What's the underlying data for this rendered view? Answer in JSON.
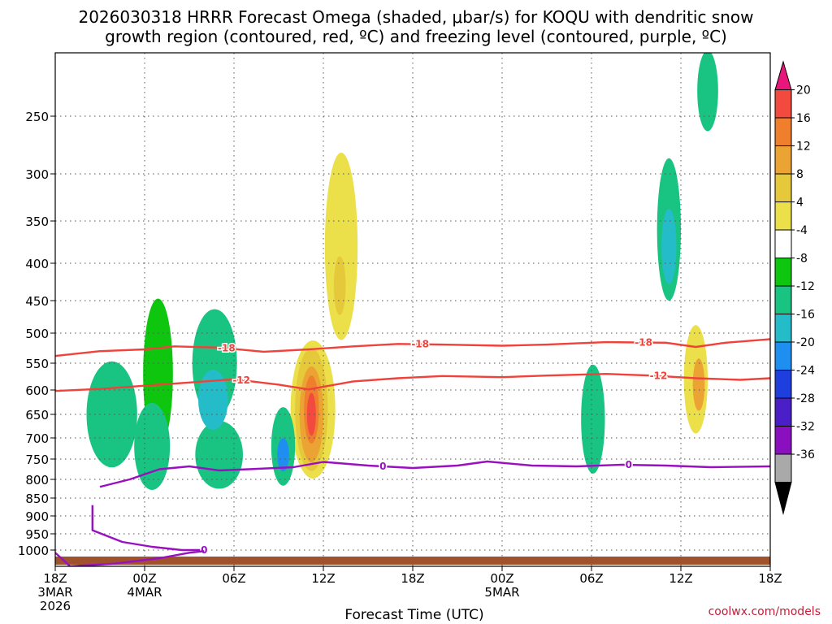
{
  "chart_data": {
    "type": "heatmap",
    "title_lines": [
      "2026030318 HRRR Forecast Omega (shaded, μbar/s) for KOQU with dendritic snow",
      "growth region (contoured, red, ºC) and freezing level (contoured, purple, ºC)"
    ],
    "xlabel": "Forecast Time (UTC)",
    "ylabel": "",
    "credit": "coolwx.com/models",
    "x_range_hours": [
      0,
      48
    ],
    "x_ticks": [
      {
        "hour": 0,
        "lines": [
          "18Z",
          "3MAR",
          "2026"
        ]
      },
      {
        "hour": 6,
        "lines": [
          "00Z",
          "4MAR"
        ]
      },
      {
        "hour": 12,
        "lines": [
          "06Z"
        ]
      },
      {
        "hour": 18,
        "lines": [
          "12Z"
        ]
      },
      {
        "hour": 24,
        "lines": [
          "18Z"
        ]
      },
      {
        "hour": 30,
        "lines": [
          "00Z",
          "5MAR"
        ]
      },
      {
        "hour": 36,
        "lines": [
          "06Z"
        ]
      },
      {
        "hour": 42,
        "lines": [
          "12Z"
        ]
      },
      {
        "hour": 48,
        "lines": [
          "18Z"
        ]
      }
    ],
    "y_axis": "pressure (hPa)",
    "y_range": [
      200,
      1030
    ],
    "y_ticks": [
      250,
      300,
      350,
      400,
      450,
      500,
      550,
      600,
      650,
      700,
      750,
      800,
      850,
      900,
      950,
      1000
    ],
    "colorbar": {
      "labels": [
        "20",
        "16",
        "12",
        "8",
        "4",
        "-4",
        "-8",
        "-12",
        "-16",
        "-20",
        "-24",
        "-28",
        "-32",
        "-36"
      ],
      "colors": [
        "#e8157a",
        "#f24a3e",
        "#f07f2d",
        "#eba334",
        "#e6c93a",
        "#ece04a",
        "#ffffff",
        "#0ec60e",
        "#19c483",
        "#25bcc9",
        "#1e8ef0",
        "#1e3fde",
        "#4a1fc8",
        "#8a0fbf",
        "#a9a9a9",
        "#000000"
      ]
    },
    "contours": [
      {
        "name": "dgz-minus-18",
        "color": "#f0413a",
        "label": "-18",
        "label_hours": [
          11.5,
          24.5,
          39.5
        ],
        "points": [
          [
            0,
            538
          ],
          [
            3,
            530
          ],
          [
            6,
            527
          ],
          [
            8,
            522
          ],
          [
            11,
            524
          ],
          [
            14,
            531
          ],
          [
            17,
            527
          ],
          [
            20,
            522
          ],
          [
            23,
            518
          ],
          [
            26,
            519
          ],
          [
            30,
            521
          ],
          [
            33,
            519
          ],
          [
            37,
            515
          ],
          [
            41,
            516
          ],
          [
            43,
            523
          ],
          [
            45,
            516
          ],
          [
            48,
            510
          ]
        ]
      },
      {
        "name": "dgz-minus-12",
        "color": "#f0413a",
        "label": "-12",
        "label_hours": [
          12.5,
          40.5
        ],
        "points": [
          [
            0,
            602
          ],
          [
            3,
            598
          ],
          [
            6,
            592
          ],
          [
            9,
            586
          ],
          [
            12,
            580
          ],
          [
            15,
            590
          ],
          [
            17,
            599
          ],
          [
            20,
            584
          ],
          [
            23,
            578
          ],
          [
            26,
            574
          ],
          [
            30,
            576
          ],
          [
            33,
            573
          ],
          [
            37,
            570
          ],
          [
            40,
            573
          ],
          [
            43,
            578
          ],
          [
            46,
            581
          ],
          [
            48,
            578
          ]
        ]
      },
      {
        "name": "freezing-level-main",
        "color": "#9a10c0",
        "label": "0",
        "label_hours": [
          22,
          38.5
        ],
        "points": [
          [
            3,
            820
          ],
          [
            5,
            800
          ],
          [
            7,
            775
          ],
          [
            9,
            768
          ],
          [
            11,
            778
          ],
          [
            13,
            775
          ],
          [
            16,
            770
          ],
          [
            18,
            757
          ],
          [
            21,
            766
          ],
          [
            24,
            772
          ],
          [
            27,
            766
          ],
          [
            29,
            756
          ],
          [
            32,
            766
          ],
          [
            35,
            768
          ],
          [
            38,
            764
          ],
          [
            41,
            766
          ],
          [
            44,
            770
          ],
          [
            48,
            768
          ]
        ]
      },
      {
        "name": "freezing-level-lower",
        "color": "#9a10c0",
        "label": "0",
        "label_hours": [
          10
        ],
        "points": [
          [
            2.5,
            870
          ],
          [
            2.5,
            940
          ],
          [
            4.5,
            975
          ],
          [
            6.5,
            990
          ],
          [
            8.5,
            1000
          ],
          [
            10,
            1000
          ]
        ]
      },
      {
        "name": "freezing-level-surface",
        "color": "#9a10c0",
        "label": "",
        "label_hours": [],
        "points": [
          [
            0,
            1005
          ],
          [
            1,
            1030
          ],
          [
            4,
            1025
          ],
          [
            7,
            1015
          ],
          [
            9,
            1005
          ],
          [
            10,
            1002
          ]
        ]
      }
    ],
    "omega_features": [
      {
        "center_hour": 3.8,
        "center_p": 650,
        "hw": 1.7,
        "hp": 220,
        "level": 2
      },
      {
        "center_hour": 6.5,
        "center_p": 720,
        "hw": 1.2,
        "hp": 200,
        "level": 2
      },
      {
        "center_hour": 6.9,
        "center_p": 570,
        "hw": 1.0,
        "hp": 270,
        "level": 1
      },
      {
        "center_hour": 10.7,
        "center_p": 550,
        "hw": 1.5,
        "hp": 190,
        "level": 2
      },
      {
        "center_hour": 11.0,
        "center_p": 740,
        "hw": 1.6,
        "hp": 160,
        "level": 2
      },
      {
        "center_hour": 10.6,
        "center_p": 620,
        "hw": 1.0,
        "hp": 120,
        "level": 3
      },
      {
        "center_hour": 15.3,
        "center_p": 720,
        "hw": 0.8,
        "hp": 180,
        "level": 2
      },
      {
        "center_hour": 15.3,
        "center_p": 740,
        "hw": 0.4,
        "hp": 80,
        "level": 4
      },
      {
        "center_hour": 36.1,
        "center_p": 660,
        "hw": 0.8,
        "hp": 230,
        "level": 2
      },
      {
        "center_hour": 41.2,
        "center_p": 360,
        "hw": 0.8,
        "hp": 160,
        "level": 2
      },
      {
        "center_hour": 41.2,
        "center_p": 380,
        "hw": 0.5,
        "hp": 90,
        "level": 3
      },
      {
        "center_hour": 43.8,
        "center_p": 230,
        "hw": 0.7,
        "hp": 70,
        "level": 2
      },
      {
        "center_hour": 19.2,
        "center_p": 380,
        "hw": -1.1,
        "hp": 220,
        "level": -1
      },
      {
        "center_hour": 19.1,
        "center_p": 430,
        "hw": -0.4,
        "hp": 80,
        "level": -2
      },
      {
        "center_hour": 17.3,
        "center_p": 640,
        "hw": -1.5,
        "hp": 280,
        "level": -1
      },
      {
        "center_hour": 17.2,
        "center_p": 640,
        "hw": -1.1,
        "hp": 250,
        "level": -2
      },
      {
        "center_hour": 17.2,
        "center_p": 650,
        "hw": -0.8,
        "hp": 200,
        "level": -3
      },
      {
        "center_hour": 17.2,
        "center_p": 640,
        "hw": -0.5,
        "hp": 140,
        "level": -4
      },
      {
        "center_hour": 17.2,
        "center_p": 650,
        "hw": -0.3,
        "hp": 90,
        "level": -5
      },
      {
        "center_hour": 43.0,
        "center_p": 580,
        "hw": -0.8,
        "hp": 200,
        "level": -1
      },
      {
        "center_hour": 43.2,
        "center_p": 590,
        "hw": -0.4,
        "hp": 100,
        "level": -3
      }
    ]
  }
}
